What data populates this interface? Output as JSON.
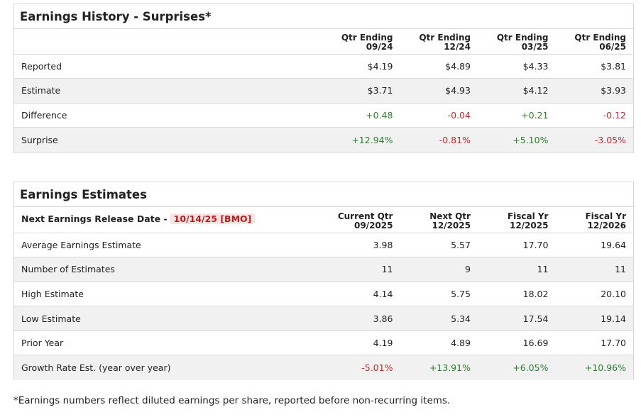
{
  "history": {
    "title": "Earnings History - Surprises*",
    "columns": [
      {
        "line1": "Qtr Ending",
        "line2": "09/24"
      },
      {
        "line1": "Qtr Ending",
        "line2": "12/24"
      },
      {
        "line1": "Qtr Ending",
        "line2": "03/25"
      },
      {
        "line1": "Qtr Ending",
        "line2": "06/25"
      }
    ],
    "rows": [
      {
        "label": "Reported",
        "values": [
          "$4.19",
          "$4.89",
          "$4.33",
          "$3.81"
        ]
      },
      {
        "label": "Estimate",
        "values": [
          "$3.71",
          "$4.93",
          "$4.12",
          "$3.93"
        ]
      },
      {
        "label": "Difference",
        "values": [
          "+0.48",
          "-0.04",
          "+0.21",
          "-0.12"
        ]
      },
      {
        "label": "Surprise",
        "values": [
          "+12.94%",
          "-0.81%",
          "+5.10%",
          "-3.05%"
        ]
      }
    ]
  },
  "estimates": {
    "title": "Earnings Estimates",
    "release_label": "Next Earnings Release Date -",
    "release_date": "10/14/25 [BMO]",
    "columns": [
      {
        "line1": "Current Qtr",
        "line2": "09/2025"
      },
      {
        "line1": "Next Qtr",
        "line2": "12/2025"
      },
      {
        "line1": "Fiscal Yr",
        "line2": "12/2025"
      },
      {
        "line1": "Fiscal Yr",
        "line2": "12/2026"
      }
    ],
    "rows": [
      {
        "label": "Average Earnings Estimate",
        "values": [
          "3.98",
          "5.57",
          "17.70",
          "19.64"
        ]
      },
      {
        "label": "Number of Estimates",
        "values": [
          "11",
          "9",
          "11",
          "11"
        ]
      },
      {
        "label": "High Estimate",
        "values": [
          "4.14",
          "5.75",
          "18.02",
          "20.10"
        ]
      },
      {
        "label": "Low Estimate",
        "values": [
          "3.86",
          "5.34",
          "17.54",
          "19.14"
        ]
      },
      {
        "label": "Prior Year",
        "values": [
          "4.19",
          "4.89",
          "16.69",
          "17.70"
        ]
      },
      {
        "label": "Growth Rate Est. (year over year)",
        "values": [
          "-5.01%",
          "+13.91%",
          "+6.05%",
          "+10.96%"
        ]
      }
    ]
  },
  "footnote": "*Earnings numbers reflect diluted earnings per share, reported before non-recurring items.",
  "colors": {
    "positive": "#2e7d32",
    "negative": "#c62828",
    "row_shade": "#f1f1f1",
    "release_bg": "#fbe3e3"
  }
}
